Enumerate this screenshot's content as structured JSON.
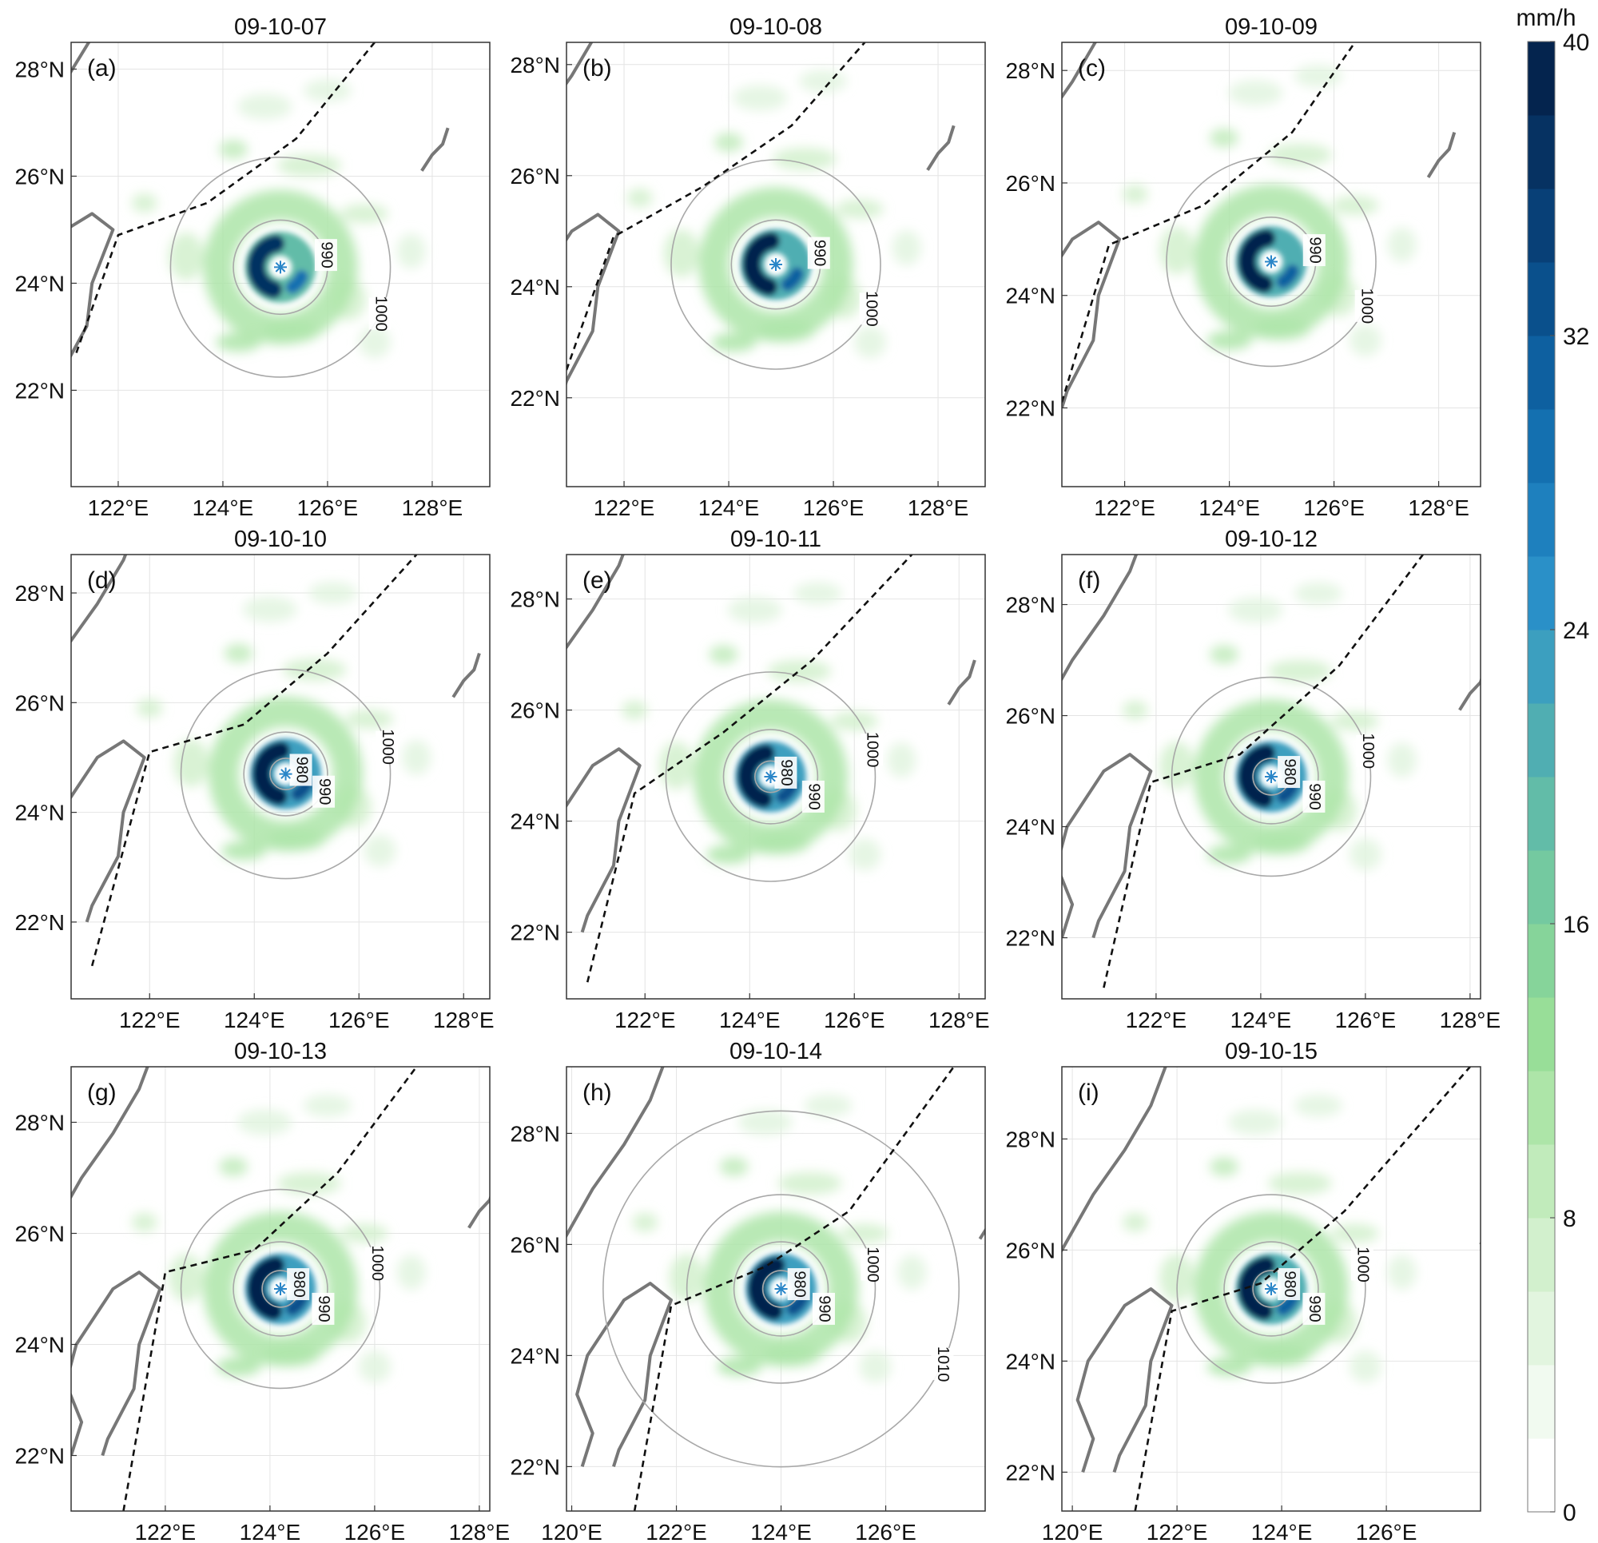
{
  "figure": {
    "colorbar": {
      "unit": "mm/h",
      "min": 0,
      "max": 40,
      "ticks": [
        "0",
        "8",
        "16",
        "24",
        "32",
        "40"
      ],
      "tick_values": [
        0,
        8,
        16,
        24,
        32,
        40
      ],
      "levels": [
        0,
        2,
        4,
        6,
        8,
        10,
        12,
        14,
        16,
        18,
        20,
        22,
        24,
        26,
        28,
        30,
        32,
        34,
        36,
        38,
        40
      ],
      "colors": [
        "#ffffff",
        "#f1faf0",
        "#e2f5df",
        "#d2f0cd",
        "#c1ebbb",
        "#ade5a8",
        "#98de98",
        "#86d49a",
        "#74c9a0",
        "#62bca8",
        "#50aeb2",
        "#3c9fbf",
        "#2a90c8",
        "#1e80be",
        "#1470b0",
        "#0e60a0",
        "#0a508c",
        "#084077",
        "#063262",
        "#04244e"
      ]
    }
  },
  "chart_data": [
    {
      "type": "heatmap",
      "panel": "(a)",
      "title": "09-10-07",
      "x_ticks": [
        "122°E",
        "124°E",
        "126°E",
        "128°E"
      ],
      "x_tick_values": [
        122,
        124,
        126,
        128
      ],
      "xlim": [
        121.1,
        129.1
      ],
      "y_ticks": [
        "22°N",
        "24°N",
        "26°N",
        "28°N"
      ],
      "y_tick_values": [
        22,
        24,
        26,
        28
      ],
      "ylim": [
        20.2,
        28.5
      ],
      "center": [
        125.1,
        24.3
      ],
      "track": [
        [
          121.2,
          22.7
        ],
        [
          122.0,
          24.9
        ],
        [
          123.7,
          25.5
        ],
        [
          125.4,
          26.7
        ],
        [
          126.9,
          28.5
        ]
      ],
      "isobars": [
        {
          "value": 990,
          "label": "990",
          "radius_deg": 0.9
        },
        {
          "value": 1000,
          "label": "1000",
          "radius_deg": 2.1
        }
      ],
      "rain_peak_mmh": 36
    },
    {
      "type": "heatmap",
      "panel": "(b)",
      "title": "09-10-08",
      "x_ticks": [
        "122°E",
        "124°E",
        "126°E",
        "128°E"
      ],
      "x_tick_values": [
        122,
        124,
        126,
        128
      ],
      "xlim": [
        120.9,
        128.9
      ],
      "y_ticks": [
        "22°N",
        "24°N",
        "26°N",
        "28°N"
      ],
      "y_tick_values": [
        22,
        24,
        26,
        28
      ],
      "ylim": [
        20.4,
        28.4
      ],
      "center": [
        124.9,
        24.4
      ],
      "track": [
        [
          120.9,
          22.5
        ],
        [
          121.8,
          24.9
        ],
        [
          123.5,
          25.8
        ],
        [
          125.2,
          26.9
        ],
        [
          126.6,
          28.4
        ]
      ],
      "isobars": [
        {
          "value": 990,
          "label": "990",
          "radius_deg": 0.85
        },
        {
          "value": 1000,
          "label": "1000",
          "radius_deg": 2.0
        }
      ],
      "rain_peak_mmh": 38
    },
    {
      "type": "heatmap",
      "panel": "(c)",
      "title": "09-10-09",
      "x_ticks": [
        "122°E",
        "124°E",
        "126°E",
        "128°E"
      ],
      "x_tick_values": [
        122,
        124,
        126,
        128
      ],
      "xlim": [
        120.8,
        128.8
      ],
      "y_ticks": [
        "22°N",
        "24°N",
        "26°N",
        "28°N"
      ],
      "y_tick_values": [
        22,
        24,
        26,
        28
      ],
      "ylim": [
        20.6,
        28.5
      ],
      "center": [
        124.8,
        24.6
      ],
      "track": [
        [
          120.8,
          22.1
        ],
        [
          121.7,
          24.9
        ],
        [
          123.5,
          25.6
        ],
        [
          125.2,
          26.9
        ],
        [
          126.4,
          28.5
        ]
      ],
      "isobars": [
        {
          "value": 990,
          "label": "990",
          "radius_deg": 0.85
        },
        {
          "value": 1000,
          "label": "1000",
          "radius_deg": 2.0
        }
      ],
      "rain_peak_mmh": 38
    },
    {
      "type": "heatmap",
      "panel": "(d)",
      "title": "09-10-10",
      "x_ticks": [
        "122°E",
        "124°E",
        "126°E",
        "128°E"
      ],
      "x_tick_values": [
        122,
        124,
        126,
        128
      ],
      "xlim": [
        120.5,
        128.5
      ],
      "y_ticks": [
        "22°N",
        "24°N",
        "26°N",
        "28°N"
      ],
      "y_tick_values": [
        22,
        24,
        26,
        28
      ],
      "ylim": [
        20.6,
        28.7
      ],
      "center": [
        124.6,
        24.7
      ],
      "track": [
        [
          120.9,
          21.2
        ],
        [
          122.0,
          25.1
        ],
        [
          123.8,
          25.6
        ],
        [
          125.4,
          26.9
        ],
        [
          127.1,
          28.7
        ]
      ],
      "isobars": [
        {
          "value": 980,
          "label": "980",
          "radius_deg": 0.3
        },
        {
          "value": 990,
          "label": "990",
          "radius_deg": 0.8
        },
        {
          "value": 1000,
          "label": "1000",
          "radius_deg": 2.0
        }
      ],
      "rain_peak_mmh": 40
    },
    {
      "type": "heatmap",
      "panel": "(e)",
      "title": "09-10-11",
      "x_ticks": [
        "122°E",
        "124°E",
        "126°E",
        "128°E"
      ],
      "x_tick_values": [
        122,
        124,
        126,
        128
      ],
      "xlim": [
        120.5,
        128.5
      ],
      "y_ticks": [
        "22°N",
        "24°N",
        "26°N",
        "28°N"
      ],
      "y_tick_values": [
        22,
        24,
        26,
        28
      ],
      "ylim": [
        20.8,
        28.8
      ],
      "center": [
        124.4,
        24.8
      ],
      "track": [
        [
          120.9,
          21.1
        ],
        [
          121.8,
          24.5
        ],
        [
          123.5,
          25.6
        ],
        [
          125.2,
          26.9
        ],
        [
          127.1,
          28.8
        ]
      ],
      "isobars": [
        {
          "value": 980,
          "label": "980",
          "radius_deg": 0.3
        },
        {
          "value": 990,
          "label": "990",
          "radius_deg": 0.9
        },
        {
          "value": 1000,
          "label": "1000",
          "radius_deg": 2.0
        }
      ],
      "rain_peak_mmh": 40
    },
    {
      "type": "heatmap",
      "panel": "(f)",
      "title": "09-10-12",
      "x_ticks": [
        "122°E",
        "124°E",
        "126°E",
        "128°E"
      ],
      "x_tick_values": [
        122,
        124,
        126,
        128
      ],
      "xlim": [
        120.2,
        128.2
      ],
      "y_ticks": [
        "22°N",
        "24°N",
        "26°N",
        "28°N"
      ],
      "y_tick_values": [
        22,
        24,
        26,
        28
      ],
      "ylim": [
        20.9,
        28.9
      ],
      "center": [
        124.2,
        24.9
      ],
      "track": [
        [
          121.0,
          21.1
        ],
        [
          121.9,
          24.8
        ],
        [
          123.6,
          25.3
        ],
        [
          125.5,
          26.9
        ],
        [
          127.1,
          28.9
        ]
      ],
      "isobars": [
        {
          "value": 980,
          "label": "980",
          "radius_deg": 0.35
        },
        {
          "value": 990,
          "label": "990",
          "radius_deg": 0.9
        },
        {
          "value": 1000,
          "label": "1000",
          "radius_deg": 1.9
        }
      ],
      "rain_peak_mmh": 40
    },
    {
      "type": "heatmap",
      "panel": "(g)",
      "title": "09-10-13",
      "x_ticks": [
        "122°E",
        "124°E",
        "126°E",
        "128°E"
      ],
      "x_tick_values": [
        122,
        124,
        126,
        128
      ],
      "xlim": [
        120.2,
        128.2
      ],
      "y_ticks": [
        "22°N",
        "24°N",
        "26°N",
        "28°N"
      ],
      "y_tick_values": [
        22,
        24,
        26,
        28
      ],
      "ylim": [
        21.0,
        29.0
      ],
      "center": [
        124.2,
        25.0
      ],
      "track": [
        [
          121.2,
          21.0
        ],
        [
          122.0,
          25.3
        ],
        [
          123.7,
          25.7
        ],
        [
          125.3,
          27.1
        ],
        [
          126.8,
          29.0
        ]
      ],
      "isobars": [
        {
          "value": 980,
          "label": "980",
          "radius_deg": 0.35
        },
        {
          "value": 990,
          "label": "990",
          "radius_deg": 0.9
        },
        {
          "value": 1000,
          "label": "1000",
          "radius_deg": 1.9
        }
      ],
      "rain_peak_mmh": 40
    },
    {
      "type": "heatmap",
      "panel": "(h)",
      "title": "09-10-14",
      "x_ticks": [
        "120°E",
        "122°E",
        "124°E",
        "126°E"
      ],
      "x_tick_values": [
        120,
        122,
        124,
        126
      ],
      "xlim": [
        119.9,
        127.9
      ],
      "y_ticks": [
        "22°N",
        "24°N",
        "26°N",
        "28°N"
      ],
      "y_tick_values": [
        22,
        24,
        26,
        28
      ],
      "ylim": [
        21.2,
        29.2
      ],
      "center": [
        124.0,
        25.2
      ],
      "track": [
        [
          121.2,
          21.2
        ],
        [
          121.9,
          24.9
        ],
        [
          123.7,
          25.6
        ],
        [
          125.3,
          26.6
        ],
        [
          127.3,
          29.2
        ]
      ],
      "isobars": [
        {
          "value": 980,
          "label": "980",
          "radius_deg": 0.35
        },
        {
          "value": 990,
          "label": "990",
          "radius_deg": 0.9
        },
        {
          "value": 1000,
          "label": "1000",
          "radius_deg": 1.8
        },
        {
          "value": 1010,
          "label": "1010",
          "radius_deg": 3.4
        }
      ],
      "rain_peak_mmh": 40
    },
    {
      "type": "heatmap",
      "panel": "(i)",
      "title": "09-10-15",
      "x_ticks": [
        "120°E",
        "122°E",
        "124°E",
        "126°E"
      ],
      "x_tick_values": [
        120,
        122,
        124,
        126
      ],
      "xlim": [
        119.8,
        127.8
      ],
      "y_ticks": [
        "22°N",
        "24°N",
        "26°N",
        "28°N"
      ],
      "y_tick_values": [
        22,
        24,
        26,
        28
      ],
      "ylim": [
        21.3,
        29.3
      ],
      "center": [
        123.8,
        25.3
      ],
      "track": [
        [
          121.2,
          21.3
        ],
        [
          121.9,
          24.9
        ],
        [
          123.6,
          25.4
        ],
        [
          125.2,
          26.7
        ],
        [
          127.6,
          29.3
        ]
      ],
      "isobars": [
        {
          "value": 980,
          "label": "980",
          "radius_deg": 0.35
        },
        {
          "value": 990,
          "label": "990",
          "radius_deg": 0.9
        },
        {
          "value": 1000,
          "label": "1000",
          "radius_deg": 1.8
        }
      ],
      "rain_peak_mmh": 38
    }
  ]
}
